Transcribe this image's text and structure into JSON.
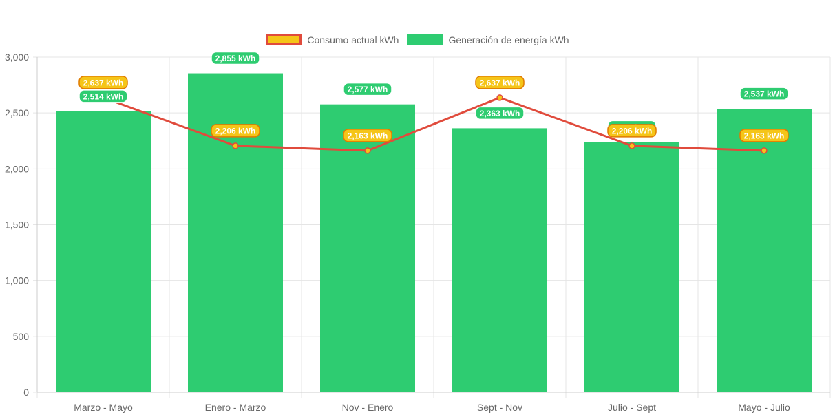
{
  "legend": {
    "line_label": "Consumo actual kWh",
    "bar_label": "Generación de energía kWh"
  },
  "colors": {
    "bar": "#2ecc71",
    "line": "#e04b3c",
    "point_fill": "#f5c518",
    "badge_line_fill": "#f5c518",
    "badge_line_border": "#e07b00",
    "grid": "#e5e5e5"
  },
  "chart_data": {
    "type": "bar",
    "categories": [
      "Marzo - Mayo",
      "Enero - Marzo",
      "Nov - Enero",
      "Sept - Nov",
      "Julio - Sept",
      "Mayo - Julio"
    ],
    "ylim": [
      0,
      3000
    ],
    "yticks": [
      0,
      500,
      1000,
      1500,
      2000,
      2500,
      3000
    ],
    "ytick_labels": [
      "0",
      "500",
      "1,000",
      "1,500",
      "2,000",
      "2,500",
      "3,000"
    ],
    "grid": true,
    "legend_position": "top",
    "series": [
      {
        "name": "Generación de energía kWh",
        "type": "bar",
        "values": [
          2514,
          2855,
          2577,
          2363,
          2240,
          2537
        ],
        "labels": [
          "2,514 kWh",
          "2,855 kWh",
          "2,577 kWh",
          "2,363 kWh",
          "2,240 kWh",
          "2,537 kWh"
        ]
      },
      {
        "name": "Consumo actual kWh",
        "type": "line",
        "values": [
          2637,
          2206,
          2163,
          2637,
          2206,
          2163
        ],
        "labels": [
          "2,637 kWh",
          "2,206 kWh",
          "2,163 kWh",
          "2,637 kWh",
          "2,206 kWh",
          "2,163 kWh"
        ]
      }
    ]
  }
}
